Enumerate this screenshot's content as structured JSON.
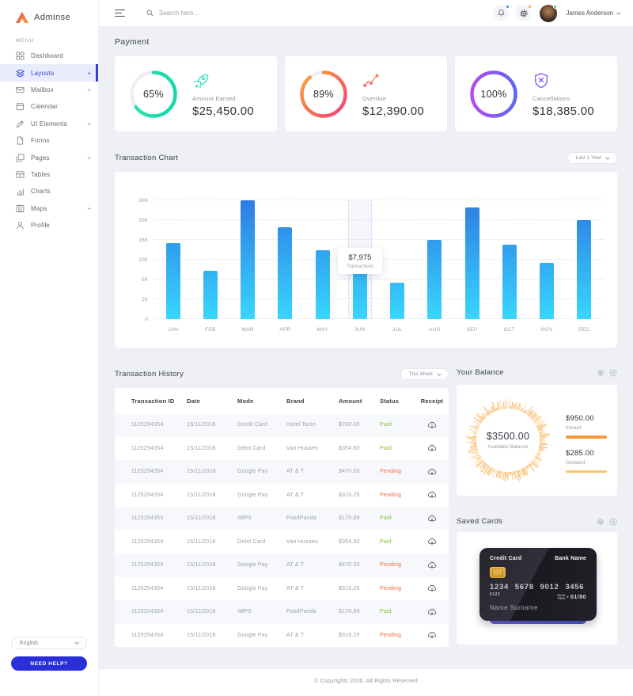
{
  "app": {
    "name": "Adminse"
  },
  "topbar": {
    "search_placeholder": "Search here...",
    "user_name": "James Anderson"
  },
  "sidebar": {
    "section_label": "MENU",
    "items": [
      {
        "label": "Dashboard",
        "icon": "dashboard",
        "plus": false,
        "active": false
      },
      {
        "label": "Layouts",
        "icon": "layers",
        "plus": true,
        "active": true
      },
      {
        "label": "Mailbox",
        "icon": "mail",
        "plus": true,
        "active": false
      },
      {
        "label": "Calendar",
        "icon": "calendar",
        "plus": false,
        "active": false
      },
      {
        "label": "UI Elements",
        "icon": "tools",
        "plus": true,
        "active": false
      },
      {
        "label": "Forms",
        "icon": "file",
        "plus": false,
        "active": false
      },
      {
        "label": "Pages",
        "icon": "pages",
        "plus": true,
        "active": false
      },
      {
        "label": "Tables",
        "icon": "table",
        "plus": false,
        "active": false
      },
      {
        "label": "Charts",
        "icon": "chart",
        "plus": false,
        "active": false
      },
      {
        "label": "Maps",
        "icon": "map",
        "plus": true,
        "active": false
      },
      {
        "label": "Profile",
        "icon": "user",
        "plus": false,
        "active": false
      }
    ],
    "language": "English",
    "help_button": "NEED HELP?"
  },
  "page": {
    "title": "Payment"
  },
  "stats": [
    {
      "percent": "65%",
      "pct": 65,
      "label": "Amount Earned",
      "value": "$25,450.00",
      "icon": "rocket",
      "color_from": "#2be3b4",
      "color_to": "#17d8a6"
    },
    {
      "percent": "89%",
      "pct": 89,
      "label": "Overdue",
      "value": "$12,390.00",
      "icon": "trend",
      "color_from": "#f9a23c",
      "color_to": "#f23f79"
    },
    {
      "percent": "100%",
      "pct": 100,
      "label": "Cancellations",
      "value": "$18,385.00",
      "icon": "shield",
      "color_from": "#b44cf0",
      "color_to": "#5b67f5"
    }
  ],
  "chart_section": {
    "title": "Transaction Chart",
    "range_label": "Last 1 Year"
  },
  "chart_data": {
    "type": "bar",
    "title": "Transaction Chart",
    "categories": [
      "JAN",
      "FEB",
      "MAR",
      "APR",
      "MAY",
      "JUN",
      "JUL",
      "AUG",
      "SEP",
      "OCT",
      "NOV",
      "DEC"
    ],
    "values": [
      14300,
      7200,
      30000,
      18300,
      12400,
      7975,
      4500,
      15000,
      26500,
      13800,
      9200,
      20000
    ],
    "y_ticks": [
      "0",
      "2K",
      "5K",
      "10K",
      "15K",
      "20K",
      "30K"
    ],
    "y_tick_values": [
      0,
      2000,
      5000,
      10000,
      15000,
      20000,
      30000
    ],
    "highlight_index": 5,
    "tooltip": {
      "value": "$7,975",
      "label": "Transactions"
    },
    "bar_gradient": [
      "#38d6fd",
      "#2e7ce4"
    ],
    "grid": true,
    "legend": false
  },
  "history": {
    "title": "Transaction History",
    "range_label": "This Week",
    "columns": [
      "Transaction ID",
      "Date",
      "Mode",
      "Brand",
      "Amount",
      "Status",
      "Receipt"
    ],
    "rows": [
      {
        "id": "1125254354",
        "date": "15/11/2018",
        "mode": "Credit Card",
        "brand": "Hotel Taste",
        "amount": "$700.00",
        "status": "Paid"
      },
      {
        "id": "1125254354",
        "date": "15/11/2018",
        "mode": "Debit Card",
        "brand": "Van Husaen",
        "amount": "$354.80",
        "status": "Paid"
      },
      {
        "id": "1125254354",
        "date": "15/11/2018",
        "mode": "Google Pay",
        "brand": "AT & T",
        "amount": "$470.00",
        "status": "Pending"
      },
      {
        "id": "1125254354",
        "date": "15/11/2018",
        "mode": "Google Pay",
        "brand": "AT & T",
        "amount": "$315.25",
        "status": "Pending"
      },
      {
        "id": "1125254354",
        "date": "15/11/2018",
        "mode": "IMPS",
        "brand": "FoodPanda",
        "amount": "$170.89",
        "status": "Paid"
      },
      {
        "id": "1125254354",
        "date": "15/11/2018",
        "mode": "Debit Card",
        "brand": "Van Husaen",
        "amount": "$354.80",
        "status": "Paid"
      },
      {
        "id": "1125254354",
        "date": "15/11/2018",
        "mode": "Google Pay",
        "brand": "AT & T",
        "amount": "$470.00",
        "status": "Pending"
      },
      {
        "id": "1125254354",
        "date": "15/11/2018",
        "mode": "Google Pay",
        "brand": "AT & T",
        "amount": "$315.25",
        "status": "Pending"
      },
      {
        "id": "1125254354",
        "date": "15/11/2018",
        "mode": "IMPS",
        "brand": "FoodPanda",
        "amount": "$170.89",
        "status": "Paid"
      },
      {
        "id": "1125254354",
        "date": "15/11/2018",
        "mode": "Google Pay",
        "brand": "AT & T",
        "amount": "$315.25",
        "status": "Pending"
      }
    ],
    "status_colors": {
      "Paid": "#7fc532",
      "Pending": "#f4693c"
    }
  },
  "balance": {
    "title": "Your Balance",
    "amount": "$3500.00",
    "amount_label": "Available Balance",
    "items": [
      {
        "value": "$950.00",
        "label": "Inward",
        "bar_color": "#f79b38"
      },
      {
        "value": "$285.00",
        "label": "Outward",
        "bar_color": "#fbc56a"
      }
    ]
  },
  "saved_cards": {
    "title": "Saved Cards",
    "card": {
      "type_label": "Credit Card",
      "bank_label": "Bank Name",
      "number": "1234 5678 9012 3456",
      "small_number": "0123",
      "valid_label": "VALID THRU",
      "valid": "01/80",
      "holder": "Name Surname"
    }
  },
  "footer": {
    "copyright": "© Copyrights 2020. All Rights Reserved"
  },
  "colors": {
    "accent": "#2b2fd9",
    "active_menu": "#3340d8",
    "bg": "#eef0f6",
    "paid": "#7fc532",
    "pending": "#f4693c"
  }
}
